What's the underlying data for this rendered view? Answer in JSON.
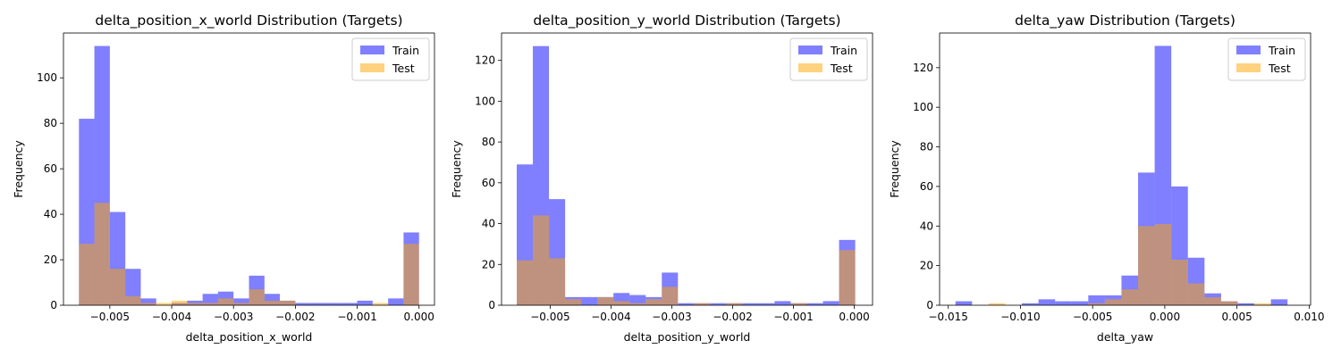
{
  "chart_data": [
    {
      "type": "histogram",
      "title": "delta_position_x_world Distribution (Targets)",
      "xlabel": "delta_position_x_world",
      "ylabel": "Frequency",
      "xlim": [
        -0.00575,
        0.00025
      ],
      "ylim": [
        0,
        119.7
      ],
      "xticks": [
        -0.005,
        -0.004,
        -0.003,
        -0.002,
        -0.001,
        0.0
      ],
      "xtick_labels": [
        "−0.005",
        "−0.004",
        "−0.003",
        "−0.002",
        "−0.001",
        "0.000"
      ],
      "yticks": [
        0,
        20,
        40,
        60,
        80,
        100
      ],
      "legend": {
        "placement": "top-right",
        "entries": [
          "Train",
          "Test"
        ]
      },
      "series": [
        {
          "name": "Train",
          "color": "#0000ff",
          "alpha": 0.5,
          "bin_start": -0.0055,
          "bin_width": 0.00025,
          "values": [
            82,
            114,
            41,
            16,
            3,
            0,
            1,
            2,
            5,
            6,
            3,
            13,
            5,
            2,
            1,
            1,
            1,
            1,
            2,
            0,
            3,
            32
          ]
        },
        {
          "name": "Test",
          "color": "#ffa500",
          "alpha": 0.5,
          "bin_start": -0.0055,
          "bin_width": 0.00025,
          "values": [
            27,
            45,
            16,
            4,
            1,
            1,
            2,
            1,
            1,
            3,
            1,
            7,
            2,
            2,
            0,
            0,
            0,
            0,
            0,
            1,
            0,
            27
          ]
        }
      ]
    },
    {
      "type": "histogram",
      "title": "delta_position_y_world Distribution (Targets)",
      "xlabel": "delta_position_y_world",
      "ylabel": "Frequency",
      "xlim": [
        -0.0058,
        0.0003
      ],
      "ylim": [
        0,
        133.4
      ],
      "xticks": [
        -0.005,
        -0.004,
        -0.003,
        -0.002,
        -0.001,
        0.0
      ],
      "xtick_labels": [
        "−0.005",
        "−0.004",
        "−0.003",
        "−0.002",
        "−0.001",
        "0.000"
      ],
      "yticks": [
        0,
        20,
        40,
        60,
        80,
        100,
        120
      ],
      "legend": {
        "placement": "top-right",
        "entries": [
          "Train",
          "Test"
        ]
      },
      "series": [
        {
          "name": "Train",
          "color": "#0000ff",
          "alpha": 0.5,
          "bin_start": -0.00555,
          "bin_width": 0.000265,
          "values": [
            69,
            127,
            52,
            4,
            4,
            4,
            6,
            5,
            4,
            16,
            1,
            1,
            1,
            1,
            1,
            1,
            2,
            1,
            1,
            2,
            32
          ]
        },
        {
          "name": "Test",
          "color": "#ffa500",
          "alpha": 0.5,
          "bin_start": -0.00555,
          "bin_width": 0.000265,
          "values": [
            22,
            44,
            23,
            3,
            0,
            4,
            2,
            1,
            3,
            9,
            0,
            1,
            0,
            1,
            0,
            0,
            0,
            1,
            0,
            0,
            27
          ]
        }
      ]
    },
    {
      "type": "histogram",
      "title": "delta_yaw Distribution (Targets)",
      "xlabel": "delta_yaw",
      "ylabel": "Frequency",
      "xlim": [
        -0.0156,
        0.0101
      ],
      "ylim": [
        0,
        137.5
      ],
      "xticks": [
        -0.015,
        -0.01,
        -0.005,
        0.0,
        0.005,
        0.01
      ],
      "xtick_labels": [
        "−0.015",
        "−0.010",
        "−0.005",
        "0.000",
        "0.005",
        "0.010"
      ],
      "yticks": [
        0,
        20,
        40,
        60,
        80,
        100,
        120
      ],
      "legend": {
        "placement": "top-right",
        "entries": [
          "Train",
          "Test"
        ]
      },
      "series": [
        {
          "name": "Train",
          "color": "#0000ff",
          "alpha": 0.5,
          "bin_start": -0.0145,
          "bin_width": 0.00115,
          "values": [
            2,
            0,
            0,
            0,
            1,
            3,
            2,
            2,
            5,
            5,
            15,
            67,
            131,
            60,
            24,
            6,
            2,
            1,
            0,
            3
          ]
        },
        {
          "name": "Test",
          "color": "#ffa500",
          "alpha": 0.5,
          "bin_start": -0.0145,
          "bin_width": 0.00115,
          "values": [
            0,
            0,
            1,
            0,
            0,
            0,
            0,
            0,
            1,
            3,
            8,
            40,
            41,
            23,
            11,
            4,
            2,
            0,
            1,
            0
          ]
        }
      ]
    }
  ]
}
